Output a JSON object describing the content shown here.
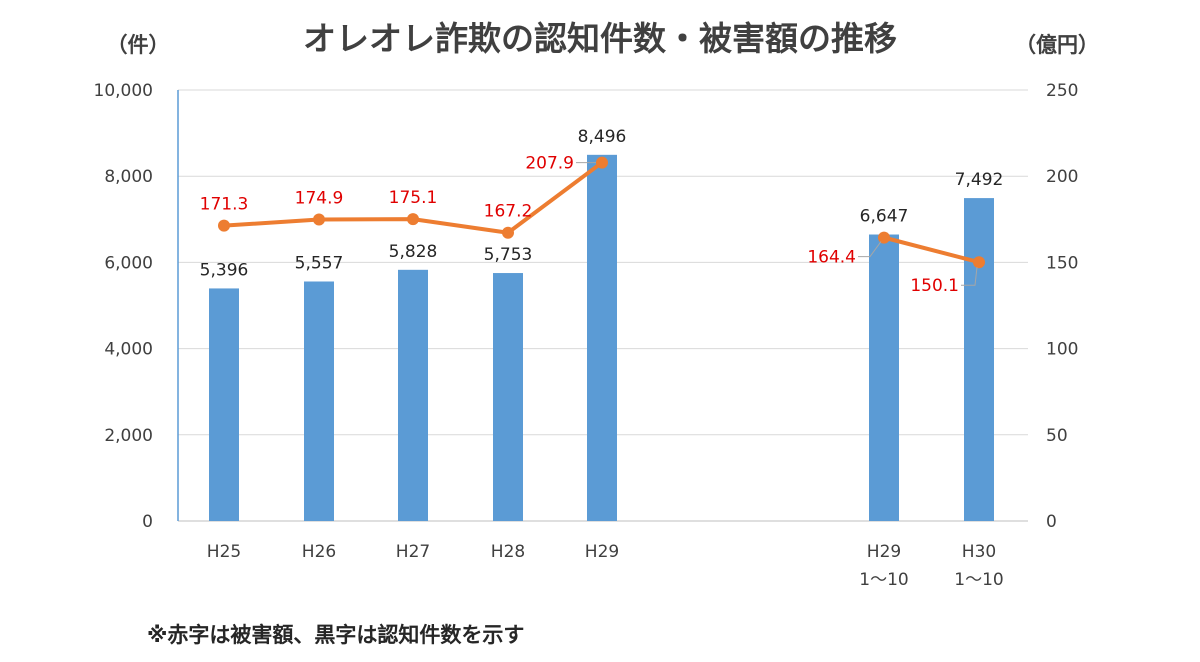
{
  "chart_data": {
    "type": "bar",
    "title": "オレオレ詐欺の認知件数・被害額の推移",
    "y_left_unit": "（件）",
    "y_right_unit": "（億円）",
    "y_left_ticks": [
      "0",
      "2,000",
      "4,000",
      "6,000",
      "8,000",
      "10,000"
    ],
    "y_right_ticks": [
      "0",
      "50",
      "100",
      "150",
      "200",
      "250"
    ],
    "ylim_left": [
      0,
      10000
    ],
    "ylim_right": [
      0,
      250
    ],
    "note": "※赤字は被害額、黒字は認知件数を示す",
    "groups": [
      {
        "categories": [
          [
            "H25"
          ],
          [
            "H26"
          ],
          [
            "H27"
          ],
          [
            "H28"
          ],
          [
            "H29"
          ]
        ],
        "bar_values": [
          5396,
          5557,
          5828,
          5753,
          8496
        ],
        "bar_labels": [
          "5,396",
          "5,557",
          "5,828",
          "5,753",
          "8,496"
        ],
        "line_values": [
          171.3,
          174.9,
          175.1,
          167.2,
          207.9
        ],
        "line_labels": [
          "171.3",
          "174.9",
          "175.1",
          "167.2",
          "207.9"
        ]
      },
      {
        "categories": [
          [
            "H29",
            "1～10"
          ],
          [
            "H30",
            "1～10"
          ]
        ],
        "bar_values": [
          6647,
          7492
        ],
        "bar_labels": [
          "6,647",
          "7,492"
        ],
        "line_values": [
          164.4,
          150.1
        ],
        "line_labels": [
          "164.4",
          "150.1"
        ]
      }
    ],
    "colors": {
      "bar": "#5b9bd5",
      "line": "#ed7d31",
      "line_label": "#e00000",
      "grid": "#d9d9d9",
      "axis": "#5b9bd5"
    },
    "grid": true
  }
}
